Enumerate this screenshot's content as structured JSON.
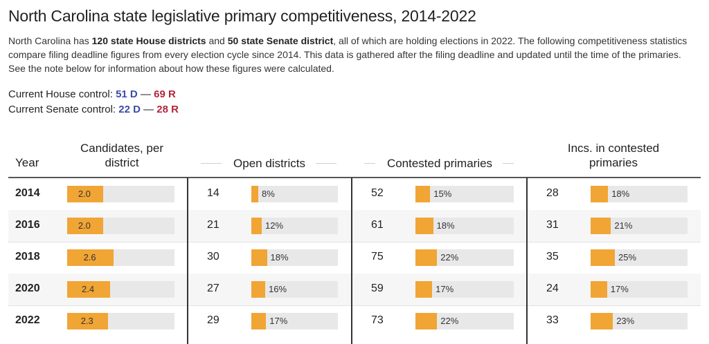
{
  "title": "North Carolina state legislative primary competitiveness, 2014-2022",
  "intro": {
    "p1": "North Carolina has ",
    "b1": "120 state House districts",
    "p2": " and ",
    "b2": "50 state Senate district",
    "p3": ", all of which are holding elections in 2022. The following competitiveness statistics compare filing deadline figures from every election cycle since 2014. This data is gathered after the filing deadline and updated until the time of the primaries. See the note below for information about how these figures were calculated."
  },
  "control": {
    "house_label": "Current House control:",
    "house_d": "51 D",
    "house_sep": "—",
    "house_r": "69 R",
    "senate_label": "Current Senate control:",
    "senate_d": "22 D",
    "senate_sep": "—",
    "senate_r": "28 R"
  },
  "colors": {
    "bar": "#f0a535",
    "track": "#e8e8e8",
    "dem": "#3b4ba8",
    "rep": "#b3253a"
  },
  "chart_data": {
    "type": "table",
    "columns": [
      "Year",
      "Candidates, per district",
      "Open districts",
      "Contested primaries",
      "Incs. in contested primaries"
    ],
    "years": [
      "2014",
      "2016",
      "2018",
      "2020",
      "2022"
    ],
    "candidates_per_district": {
      "values": [
        2.0,
        2.0,
        2.6,
        2.4,
        2.3
      ],
      "labels": [
        "2.0",
        "2.0",
        "2.6",
        "2.4",
        "2.3"
      ],
      "bar_max": 6
    },
    "open_districts": {
      "counts": [
        "14",
        "21",
        "30",
        "27",
        "29"
      ],
      "percents": [
        8,
        12,
        18,
        16,
        17
      ],
      "labels": [
        "8%",
        "12%",
        "18%",
        "16%",
        "17%"
      ]
    },
    "contested_primaries": {
      "counts": [
        "52",
        "61",
        "75",
        "59",
        "73"
      ],
      "percents": [
        15,
        18,
        22,
        17,
        22
      ],
      "labels": [
        "15%",
        "18%",
        "22%",
        "17%",
        "22%"
      ]
    },
    "incumbents_in_contested_primaries": {
      "counts": [
        "28",
        "31",
        "35",
        "24",
        "33"
      ],
      "percents": [
        18,
        21,
        25,
        17,
        23
      ],
      "labels": [
        "18%",
        "21%",
        "25%",
        "17%",
        "23%"
      ]
    }
  }
}
